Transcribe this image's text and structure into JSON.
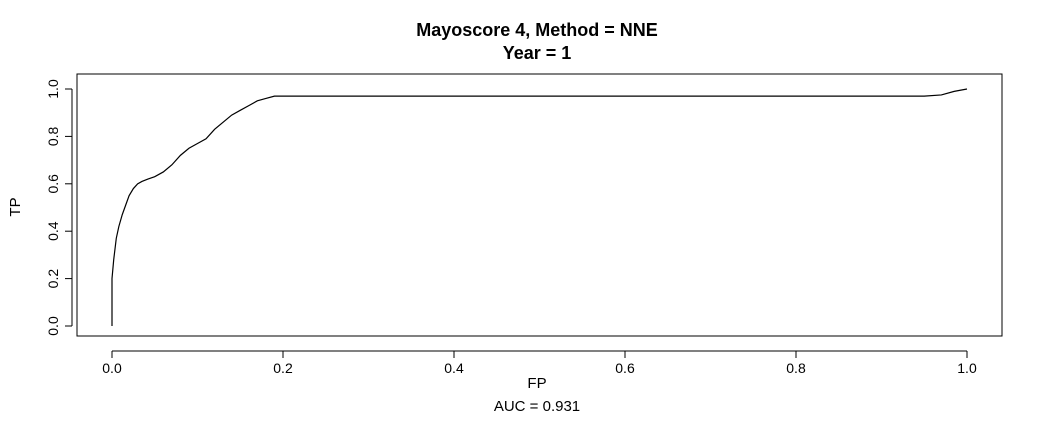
{
  "chart_data": {
    "type": "line",
    "title": "Mayoscore 4, Method = NNE",
    "subtitle": "Year = 1",
    "xlabel": "FP",
    "ylabel": "TP",
    "note": "AUC =  0.931",
    "xlim": [
      0,
      1
    ],
    "ylim": [
      0,
      1
    ],
    "x_ticks": [
      "0.0",
      "0.2",
      "0.4",
      "0.6",
      "0.8",
      "1.0"
    ],
    "y_ticks": [
      "0.0",
      "0.2",
      "0.4",
      "0.6",
      "0.8",
      "1.0"
    ],
    "grid": false,
    "series": [
      {
        "x": [
          0.0,
          0.0,
          0.002,
          0.005,
          0.008,
          0.012,
          0.016,
          0.02,
          0.025,
          0.03,
          0.035,
          0.042,
          0.05,
          0.06,
          0.07,
          0.08,
          0.09,
          0.1,
          0.11,
          0.12,
          0.13,
          0.14,
          0.15,
          0.16,
          0.17,
          0.18,
          0.19,
          0.2,
          0.3,
          0.5,
          0.7,
          0.9,
          0.95,
          0.97,
          0.985,
          1.0
        ],
        "y": [
          0.0,
          0.2,
          0.28,
          0.37,
          0.42,
          0.47,
          0.51,
          0.55,
          0.58,
          0.6,
          0.61,
          0.62,
          0.63,
          0.65,
          0.68,
          0.72,
          0.75,
          0.77,
          0.79,
          0.83,
          0.86,
          0.89,
          0.91,
          0.93,
          0.95,
          0.96,
          0.97,
          0.97,
          0.97,
          0.97,
          0.97,
          0.97,
          0.97,
          0.975,
          0.99,
          1.0
        ]
      }
    ]
  }
}
